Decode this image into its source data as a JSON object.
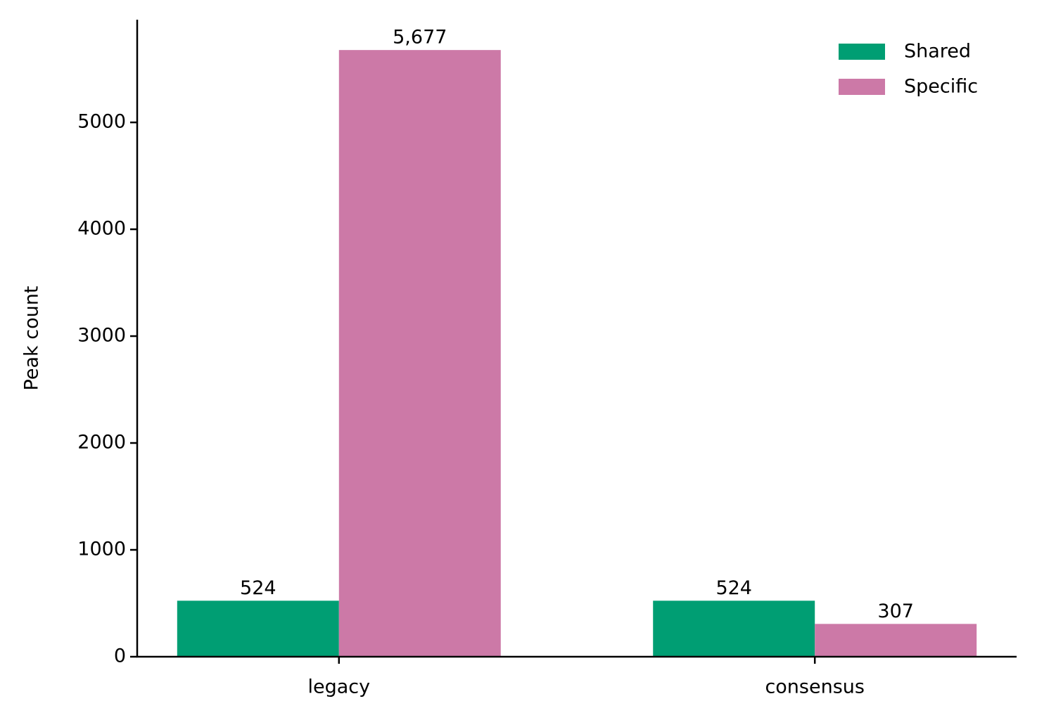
{
  "chart_data": {
    "type": "bar",
    "y_label": "Peak count",
    "categories": [
      "legacy",
      "consensus"
    ],
    "series": [
      {
        "name": "Shared",
        "color": "#009e73",
        "values": [
          524,
          524
        ],
        "value_labels": [
          "524",
          "524"
        ]
      },
      {
        "name": "Specific",
        "color": "#cc79a7",
        "values": [
          5677,
          307
        ],
        "value_labels": [
          "5,677",
          "307"
        ]
      }
    ],
    "ylim": [
      0,
      5961
    ],
    "yticks": [
      0,
      1000,
      2000,
      3000,
      4000,
      5000
    ],
    "legend": "upper right",
    "grid": false
  }
}
